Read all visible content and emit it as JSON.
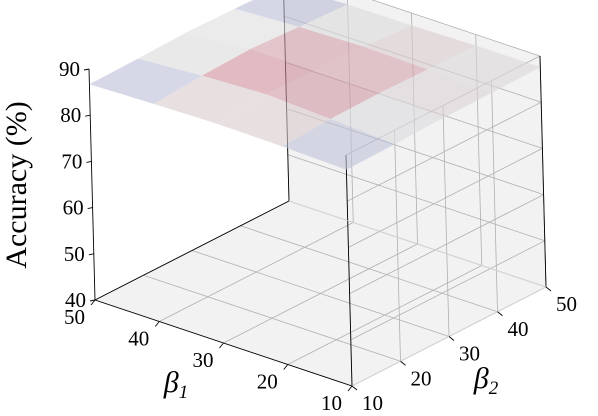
{
  "chart_data": {
    "type": "surface3d",
    "title": "",
    "zlabel": "Accuracy (%)",
    "xlabel": "β",
    "xlabel_sub": "1",
    "ylabel": "β",
    "ylabel_sub": "2",
    "x_ticks": [
      10,
      20,
      30,
      40,
      50
    ],
    "y_ticks": [
      10,
      20,
      30,
      40,
      50
    ],
    "z_ticks": [
      40,
      50,
      60,
      70,
      80,
      90
    ],
    "xlim": [
      10,
      50
    ],
    "ylim": [
      10,
      50
    ],
    "zlim": [
      40,
      90
    ],
    "grid": true,
    "colormap": "coolwarm",
    "x": [
      10,
      20,
      30,
      40,
      50
    ],
    "y": [
      10,
      20,
      30,
      40,
      50
    ],
    "z_values": [
      [
        86.8,
        87.0,
        87.3,
        87.4,
        87.6
      ],
      [
        87.2,
        87.8,
        88.0,
        87.8,
        87.6
      ],
      [
        87.4,
        88.5,
        88.3,
        88.1,
        87.3
      ],
      [
        87.1,
        87.9,
        88.3,
        87.7,
        87.2
      ],
      [
        86.7,
        86.9,
        87.2,
        87.0,
        86.6
      ]
    ]
  },
  "colors": {
    "cool": "#3b4cc0",
    "neutral": "#dddddd",
    "warm": "#b40426",
    "pane": "#f2f2f2",
    "grid": "#b0b0b0"
  }
}
